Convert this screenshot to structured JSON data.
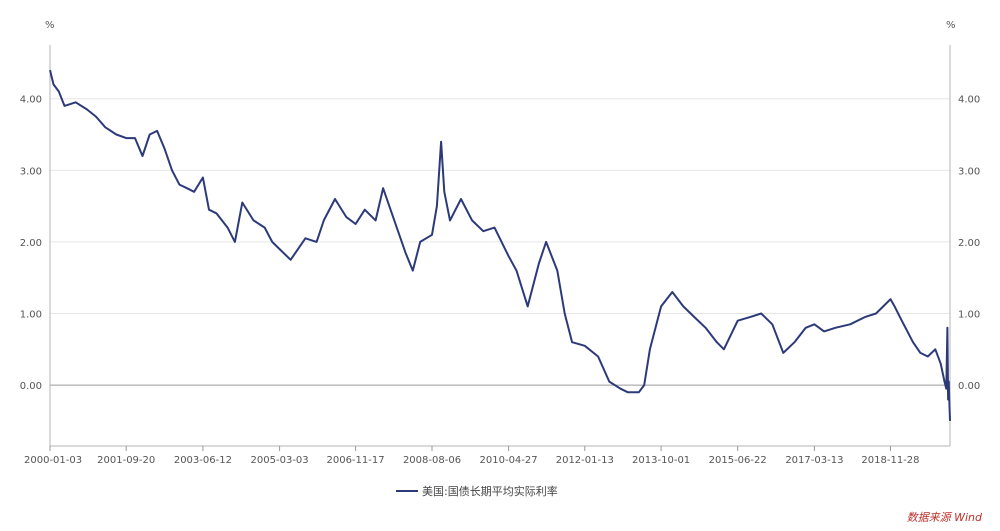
{
  "chart_data": {
    "type": "line",
    "unit_left": "%",
    "unit_right": "%",
    "ylim": [
      -0.85,
      4.75
    ],
    "y_ticks": [
      "4.00",
      "3.00",
      "2.00",
      "1.00",
      "0.00"
    ],
    "y_tick_values": [
      4,
      3,
      2,
      1,
      0
    ],
    "x_tick_labels": [
      "2000-01-03",
      "2001-09-20",
      "2003-06-12",
      "2005-03-03",
      "2006-11-17",
      "2008-08-06",
      "2010-04-27",
      "2012-01-13",
      "2013-10-01",
      "2015-06-22",
      "2017-03-13",
      "2018-11-28"
    ],
    "x_range": [
      "2000-01-03",
      "2020-03-31"
    ],
    "grid": "horizontal",
    "series": [
      {
        "name": "美国:国债长期平均实际利率",
        "color": "#2d3a7a",
        "points": [
          [
            "2000-01-03",
            4.4
          ],
          [
            "2000-02-01",
            4.2
          ],
          [
            "2000-03-15",
            4.1
          ],
          [
            "2000-05-01",
            3.9
          ],
          [
            "2000-08-01",
            3.95
          ],
          [
            "2000-11-01",
            3.85
          ],
          [
            "2001-01-15",
            3.75
          ],
          [
            "2001-04-01",
            3.6
          ],
          [
            "2001-07-01",
            3.5
          ],
          [
            "2001-09-20",
            3.45
          ],
          [
            "2001-12-01",
            3.45
          ],
          [
            "2002-02-01",
            3.2
          ],
          [
            "2002-04-01",
            3.5
          ],
          [
            "2002-06-01",
            3.55
          ],
          [
            "2002-08-01",
            3.3
          ],
          [
            "2002-10-01",
            3.0
          ],
          [
            "2002-12-01",
            2.8
          ],
          [
            "2003-02-01",
            2.75
          ],
          [
            "2003-04-01",
            2.7
          ],
          [
            "2003-06-12",
            2.9
          ],
          [
            "2003-08-01",
            2.45
          ],
          [
            "2003-10-01",
            2.4
          ],
          [
            "2004-01-01",
            2.2
          ],
          [
            "2004-03-01",
            2.0
          ],
          [
            "2004-05-01",
            2.55
          ],
          [
            "2004-08-01",
            2.3
          ],
          [
            "2004-11-01",
            2.2
          ],
          [
            "2005-01-01",
            2.0
          ],
          [
            "2005-03-03",
            1.9
          ],
          [
            "2005-06-01",
            1.75
          ],
          [
            "2005-08-01",
            1.9
          ],
          [
            "2005-10-01",
            2.05
          ],
          [
            "2006-01-01",
            2.0
          ],
          [
            "2006-03-01",
            2.3
          ],
          [
            "2006-06-01",
            2.6
          ],
          [
            "2006-09-01",
            2.35
          ],
          [
            "2006-11-17",
            2.25
          ],
          [
            "2007-02-01",
            2.45
          ],
          [
            "2007-05-01",
            2.3
          ],
          [
            "2007-07-01",
            2.75
          ],
          [
            "2007-10-01",
            2.3
          ],
          [
            "2008-01-01",
            1.85
          ],
          [
            "2008-03-01",
            1.6
          ],
          [
            "2008-05-01",
            2.0
          ],
          [
            "2008-08-06",
            2.1
          ],
          [
            "2008-09-15",
            2.5
          ],
          [
            "2008-10-20",
            3.4
          ],
          [
            "2008-11-15",
            2.7
          ],
          [
            "2009-01-01",
            2.3
          ],
          [
            "2009-04-01",
            2.6
          ],
          [
            "2009-07-01",
            2.3
          ],
          [
            "2009-10-01",
            2.15
          ],
          [
            "2010-01-01",
            2.2
          ],
          [
            "2010-04-27",
            1.8
          ],
          [
            "2010-07-01",
            1.6
          ],
          [
            "2010-10-01",
            1.1
          ],
          [
            "2011-01-01",
            1.7
          ],
          [
            "2011-03-01",
            2.0
          ],
          [
            "2011-06-01",
            1.6
          ],
          [
            "2011-08-01",
            1.0
          ],
          [
            "2011-10-01",
            0.6
          ],
          [
            "2012-01-13",
            0.55
          ],
          [
            "2012-05-01",
            0.4
          ],
          [
            "2012-08-01",
            0.05
          ],
          [
            "2012-11-01",
            -0.05
          ],
          [
            "2013-01-01",
            -0.1
          ],
          [
            "2013-04-01",
            -0.1
          ],
          [
            "2013-05-15",
            0.0
          ],
          [
            "2013-07-01",
            0.5
          ],
          [
            "2013-10-01",
            1.1
          ],
          [
            "2014-01-01",
            1.3
          ],
          [
            "2014-04-01",
            1.1
          ],
          [
            "2014-07-01",
            0.95
          ],
          [
            "2014-10-01",
            0.8
          ],
          [
            "2015-01-01",
            0.6
          ],
          [
            "2015-03-01",
            0.5
          ],
          [
            "2015-06-22",
            0.9
          ],
          [
            "2015-10-01",
            0.95
          ],
          [
            "2016-01-01",
            1.0
          ],
          [
            "2016-04-01",
            0.85
          ],
          [
            "2016-07-01",
            0.45
          ],
          [
            "2016-10-01",
            0.6
          ],
          [
            "2017-01-01",
            0.8
          ],
          [
            "2017-03-13",
            0.85
          ],
          [
            "2017-06-01",
            0.75
          ],
          [
            "2017-09-01",
            0.8
          ],
          [
            "2018-01-01",
            0.85
          ],
          [
            "2018-05-01",
            0.95
          ],
          [
            "2018-08-01",
            1.0
          ],
          [
            "2018-11-28",
            1.2
          ],
          [
            "2019-01-01",
            1.1
          ],
          [
            "2019-03-01",
            0.9
          ],
          [
            "2019-06-01",
            0.6
          ],
          [
            "2019-08-01",
            0.45
          ],
          [
            "2019-10-01",
            0.4
          ],
          [
            "2019-12-01",
            0.5
          ],
          [
            "2020-01-15",
            0.3
          ],
          [
            "2020-02-15",
            0.05
          ],
          [
            "2020-03-01",
            -0.05
          ],
          [
            "2020-03-10",
            0.8
          ],
          [
            "2020-03-15",
            -0.2
          ],
          [
            "2020-03-20",
            0.05
          ],
          [
            "2020-03-31",
            -0.5
          ]
        ]
      }
    ]
  },
  "legend": {
    "label": "美国:国债长期平均实际利率"
  },
  "source": {
    "text": "数据来源 Wind"
  }
}
